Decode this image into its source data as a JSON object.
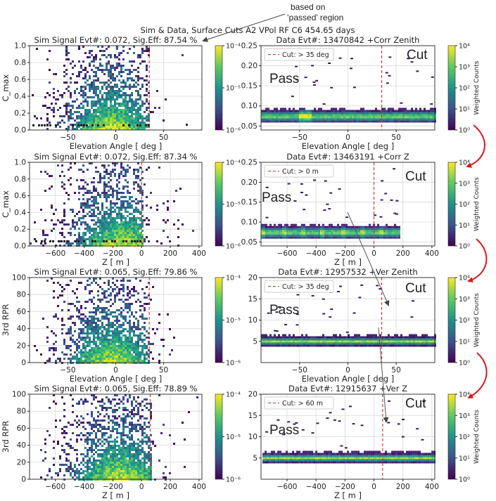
{
  "suptitle": "Sim & Data, Surface Cuts A2 VPol RF C6 454.65 days",
  "annotation": "based on\n‘passed’ region",
  "pass_label": "Pass",
  "cut_label": "Cut",
  "colors": {
    "cut_line": "#d62728",
    "label_red": "#e8140c",
    "arrow_red": "#d7191c"
  },
  "chart_data": [
    {
      "id": "sim1",
      "type": "heatmap",
      "title": "Sim Signal Evt#: 0.072, Sig.Eff: 87.54 %",
      "xlabel": "Elevation Angle [ deg ]",
      "ylabel": "C_max",
      "xlim": [
        -90,
        90
      ],
      "ylim": [
        0,
        1.0
      ],
      "xticks": [
        -50,
        0,
        50
      ],
      "yticks": [
        0.0,
        0.2,
        0.4,
        0.6,
        0.8,
        1.0
      ],
      "cut_x": 35,
      "colorbar": {
        "scale": "log",
        "range": [
          1e-06,
          0.0001
        ],
        "ticks": [
          "10⁻⁶",
          "10⁻⁵",
          "10⁻⁴"
        ],
        "label": ""
      }
    },
    {
      "id": "data1",
      "type": "heatmap",
      "title": "Data Evt#: 13470842 +Corr Zenith",
      "xlabel": "Elevation Angle [ deg ]",
      "ylabel": "",
      "xlim": [
        -90,
        90
      ],
      "ylim": [
        0.04,
        0.25
      ],
      "xticks": [
        -50,
        0,
        50
      ],
      "yticks": [
        0.05,
        0.1,
        0.15,
        0.2,
        0.25
      ],
      "cut_x": 35,
      "legend": "Cut: > 35 deg",
      "colorbar": {
        "scale": "log",
        "range": [
          1,
          100000.0
        ],
        "ticks": [
          "10⁰",
          "10¹",
          "10²",
          "10³",
          "10⁴"
        ],
        "label": "Weighted Counts"
      }
    },
    {
      "id": "sim2",
      "type": "heatmap",
      "title": "Sim Signal Evt#: 0.072, Sig.Eff: 87.34 %",
      "xlabel": "Z [ m ]",
      "ylabel": "C_max",
      "xlim": [
        -780,
        420
      ],
      "ylim": [
        0,
        1.0
      ],
      "xticks": [
        -600,
        -400,
        -200,
        0,
        200,
        400
      ],
      "yticks": [
        0.0,
        0.2,
        0.4,
        0.6,
        0.8,
        1.0
      ],
      "cut_x": 0,
      "colorbar": {
        "scale": "log",
        "range": [
          1e-06,
          0.0001
        ],
        "ticks": [
          "10⁻⁶",
          "10⁻⁵",
          "10⁻⁴"
        ],
        "label": ""
      }
    },
    {
      "id": "data2",
      "type": "heatmap",
      "title": "Data Evt#: 13463191 +Corr Z",
      "xlabel": "Z [ m ]",
      "ylabel": "",
      "xlim": [
        -780,
        420
      ],
      "ylim": [
        0.04,
        0.25
      ],
      "xticks": [
        -600,
        -400,
        -200,
        0,
        200,
        400
      ],
      "yticks": [
        0.05,
        0.1,
        0.15,
        0.2,
        0.25
      ],
      "cut_x": 0,
      "legend": "Cut: > 0 m",
      "colorbar": {
        "scale": "log",
        "range": [
          1,
          100000.0
        ],
        "ticks": [
          "10⁰",
          "10¹",
          "10²",
          "10³",
          "10⁴"
        ],
        "label": "Weighted Counts"
      }
    },
    {
      "id": "sim3",
      "type": "heatmap",
      "title": "Sim Signal Evt#: 0.065, Sig.Eff: 79.86 %",
      "xlabel": "Elevation Angle [ deg ]",
      "ylabel": "3rd RPR",
      "xlim": [
        -90,
        90
      ],
      "ylim": [
        0,
        100
      ],
      "xticks": [
        -50,
        0,
        50
      ],
      "yticks": [
        0,
        20,
        40,
        60,
        80,
        100
      ],
      "cut_x": 35,
      "colorbar": {
        "scale": "log",
        "range": [
          1e-06,
          0.0001
        ],
        "ticks": [
          "10⁻⁶",
          "10⁻⁵",
          "10⁻⁴"
        ],
        "label": ""
      }
    },
    {
      "id": "data3",
      "type": "heatmap",
      "title": "Data Evt#: 12957532 +Ver Zenith",
      "xlabel": "Elevation Angle [ deg ]",
      "ylabel": "",
      "xlim": [
        -90,
        90
      ],
      "ylim": [
        0,
        20
      ],
      "xticks": [
        -50,
        0,
        50
      ],
      "yticks": [
        5,
        10,
        15,
        20
      ],
      "cut_x": 35,
      "legend": "Cut: > 35 deg",
      "colorbar": {
        "scale": "log",
        "range": [
          1,
          10000.0
        ],
        "ticks": [
          "10⁰",
          "10¹",
          "10²",
          "10³",
          "10⁴"
        ],
        "label": "Weighted Counts"
      }
    },
    {
      "id": "sim4",
      "type": "heatmap",
      "title": "Sim Signal Evt#: 0.065, Sig.Eff: 78.89 %",
      "xlabel": "Z [ m ]",
      "ylabel": "3rd RPR",
      "xlim": [
        -780,
        420
      ],
      "ylim": [
        0,
        100
      ],
      "xticks": [
        -600,
        -400,
        -200,
        0,
        200,
        400
      ],
      "yticks": [
        0,
        20,
        40,
        60,
        80,
        100
      ],
      "cut_x": 60,
      "colorbar": {
        "scale": "log",
        "range": [
          1e-06,
          0.0001
        ],
        "ticks": [
          "10⁻⁶",
          "10⁻⁵",
          "10⁻⁴"
        ],
        "label": ""
      }
    },
    {
      "id": "data4",
      "type": "heatmap",
      "title": "Data Evt#: 12915637 +Ver Z",
      "xlabel": "Z [ m ]",
      "ylabel": "",
      "xlim": [
        -780,
        420
      ],
      "ylim": [
        0,
        20
      ],
      "xticks": [
        -600,
        -400,
        -200,
        0,
        200,
        400
      ],
      "yticks": [
        5,
        10,
        15,
        20
      ],
      "cut_x": 60,
      "legend": "Cut: > 60 m",
      "colorbar": {
        "scale": "log",
        "range": [
          1,
          10000.0
        ],
        "ticks": [
          "10⁰",
          "10¹",
          "10²",
          "10³",
          "10⁴"
        ],
        "label": "Weighted Counts"
      }
    }
  ]
}
